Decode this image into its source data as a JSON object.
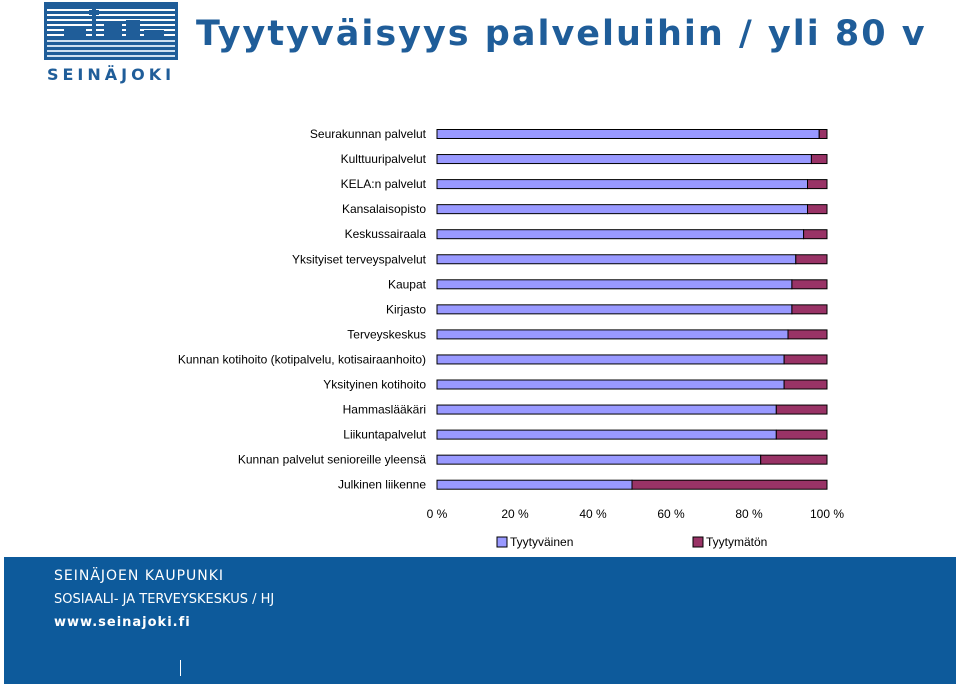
{
  "header": {
    "title": "Tyytyväisyys palveluihin / yli 80 v",
    "logo_text": "SEINÄJOKI"
  },
  "footer": {
    "line1": "SEINÄJOEN KAUPUNKI",
    "line2": "SOSIAALI- JA TERVEYSKESKUS / HJ",
    "line3": "www.seinajoki.fi"
  },
  "colors": {
    "title": "#1f5d99",
    "footer_bg": "#0d5a9b",
    "satisfied": "#9999ff",
    "unsatisfied": "#993366"
  },
  "chart_data": {
    "type": "bar",
    "orientation": "horizontal",
    "stacked": "percent",
    "categories": [
      "Seurakunnan palvelut",
      "Kulttuuripalvelut",
      "KELA:n palvelut",
      "Kansalaisopisto",
      "Keskussairaala",
      "Yksityiset terveyspalvelut",
      "Kaupat",
      "Kirjasto",
      "Terveyskeskus",
      "Kunnan kotihoito (kotipalvelu, kotisairaanhoito)",
      "Yksityinen kotihoito",
      "Hammaslääkäri",
      "Liikuntapalvelut",
      "Kunnan palvelut senioreille yleensä",
      "Julkinen liikenne"
    ],
    "series": [
      {
        "name": "Tyytyväinen",
        "values": [
          98,
          96,
          95,
          95,
          94,
          92,
          91,
          91,
          90,
          89,
          89,
          87,
          87,
          83,
          50
        ]
      },
      {
        "name": "Tyytymätön",
        "values": [
          2,
          4,
          5,
          5,
          6,
          8,
          9,
          9,
          10,
          11,
          11,
          13,
          13,
          17,
          50
        ]
      }
    ],
    "xticks": [
      "0 %",
      "20 %",
      "40 %",
      "60 %",
      "80 %",
      "100 %"
    ],
    "xlim": [
      0,
      100
    ],
    "legend_position": "bottom",
    "grid": false
  }
}
